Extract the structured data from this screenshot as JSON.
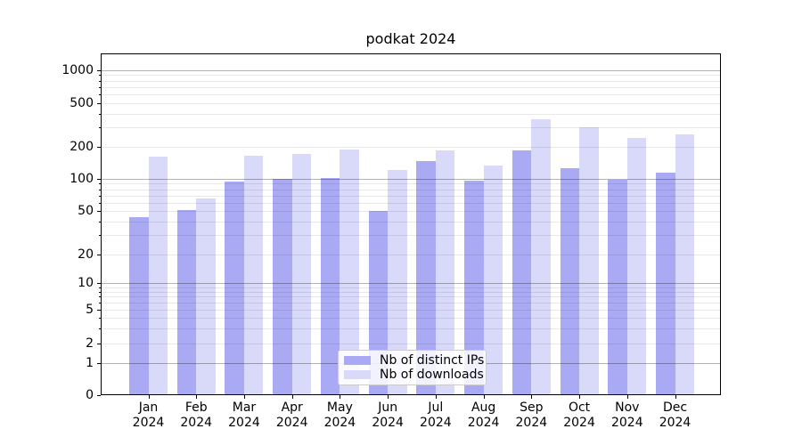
{
  "chart_data": {
    "type": "bar",
    "title": "podkat 2024",
    "categories": [
      "Jan",
      "Feb",
      "Mar",
      "Apr",
      "May",
      "Jun",
      "Jul",
      "Aug",
      "Sep",
      "Oct",
      "Nov",
      "Dec"
    ],
    "x_tick_second_line": "2024",
    "series": [
      {
        "name": "Nb of distinct IPs",
        "color": "#a9a9f4",
        "values": [
          44,
          51,
          94,
          100,
          101,
          50,
          148,
          96,
          184,
          125,
          98,
          115
        ]
      },
      {
        "name": "Nb of downloads",
        "color": "#d9d9fa",
        "values": [
          162,
          66,
          164,
          172,
          190,
          121,
          185,
          134,
          357,
          300,
          240,
          260
        ]
      }
    ],
    "xlabel": "",
    "ylabel": "",
    "y_ticks": [
      0,
      1,
      2,
      5,
      10,
      20,
      50,
      100,
      200,
      500,
      1000
    ],
    "y_scale": "symlog",
    "ylim": [
      0,
      1400
    ],
    "grid": {
      "on": true,
      "major_color": "#b3b3b3",
      "minor_color": "#e9e9e9",
      "minor_subs": [
        2,
        3,
        4,
        5,
        6,
        7,
        8,
        9
      ]
    },
    "legend": {
      "position": "lower-center"
    }
  }
}
